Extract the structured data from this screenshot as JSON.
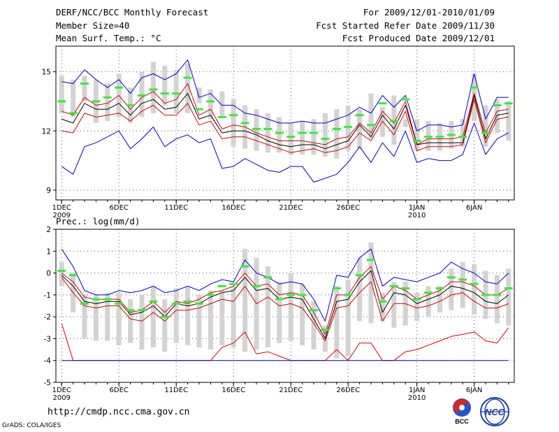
{
  "header": {
    "title": "DERF/NCC/BCC Monthly Forecast",
    "member_size": "Member Size=40",
    "variable": "Mean Surf. Temp.: °C",
    "period": "For 2009/12/01-2010/01/09",
    "refer_date": "Fcst Started Refer Date 2009/11/30",
    "produced_date": "Fcst Produced Date 2009/12/01"
  },
  "footer": {
    "url": "http://cmdp.ncc.cma.gov.cn",
    "credit": "GrADS: COLA/IGES",
    "logo_left_text": "BCC",
    "logo_right_text": "NCC"
  },
  "colors": {
    "band": "#d3d3d3",
    "green": "#33ee33",
    "blue": "#0000cc",
    "red": "#dd0000",
    "black": "#000000",
    "grid": "#555555"
  },
  "chart_data": [
    {
      "type": "line",
      "title": "Mean Surf. Temp.: °C",
      "x_labels": [
        {
          "day": 1,
          "text": "1DEC",
          "sub": "2009"
        },
        {
          "day": 6,
          "text": "6DEC",
          "sub": ""
        },
        {
          "day": 11,
          "text": "11DEC",
          "sub": ""
        },
        {
          "day": 16,
          "text": "16DEC",
          "sub": ""
        },
        {
          "day": 21,
          "text": "21DEC",
          "sub": ""
        },
        {
          "day": 26,
          "text": "26DEC",
          "sub": ""
        },
        {
          "day": 32,
          "text": "1JAN",
          "sub": "2010"
        },
        {
          "day": 37,
          "text": "6JAN",
          "sub": ""
        }
      ],
      "xlim": [
        0.5,
        40.5
      ],
      "ylim": [
        8.5,
        16.3
      ],
      "yticks": [
        9,
        12,
        15
      ],
      "series": [
        {
          "name": "member-range",
          "kind": "band",
          "low": [
            12.9,
            12.7,
            13.5,
            12.4,
            12.5,
            12.7,
            12.4,
            12.7,
            12.9,
            13.3,
            12.9,
            12.9,
            13.4,
            12.6,
            12.7,
            11.2,
            11.1,
            11.0,
            10.9,
            10.9,
            10.8,
            10.8,
            10.8,
            10.7,
            10.6,
            11.0,
            11.1,
            11.6,
            11.7,
            11.3,
            12.2,
            11.0,
            11.0,
            11.0,
            11.1,
            11.2,
            12.5,
            11.2,
            11.9,
            11.5
          ],
          "high": [
            14.8,
            14.6,
            14.8,
            14.6,
            14.4,
            14.9,
            14.2,
            15.0,
            15.5,
            15.3,
            15.1,
            15.4,
            14.2,
            14.1,
            14.0,
            13.6,
            13.3,
            13.1,
            12.9,
            12.7,
            12.4,
            12.5,
            12.6,
            12.9,
            13.1,
            13.3,
            13.1,
            13.9,
            13.2,
            13.8,
            12.6,
            12.6,
            12.5,
            12.4,
            12.5,
            12.6,
            14.9,
            13.3,
            13.6,
            13.5
          ]
        },
        {
          "name": "ensemble-mean-marker",
          "kind": "marker",
          "values": [
            13.5,
            12.9,
            14.4,
            13.5,
            13.7,
            14.2,
            13.3,
            13.8,
            14.1,
            13.9,
            13.9,
            14.7,
            13.1,
            13.5,
            12.7,
            12.8,
            12.4,
            12.1,
            12.1,
            11.9,
            11.7,
            11.9,
            11.9,
            11.6,
            12.1,
            12.2,
            12.8,
            12.3,
            13.4,
            12.5,
            13.6,
            11.5,
            11.7,
            11.7,
            11.8,
            11.7,
            14.2,
            11.9,
            13.3,
            13.4
          ]
        },
        {
          "name": "max",
          "kind": "line",
          "color": "blue",
          "values": [
            14.5,
            14.4,
            15.1,
            14.6,
            14.2,
            14.6,
            13.9,
            14.7,
            14.9,
            14.6,
            14.9,
            15.6,
            13.7,
            13.9,
            13.3,
            13.3,
            12.9,
            12.8,
            12.6,
            12.4,
            12.4,
            12.5,
            12.4,
            12.4,
            12.6,
            12.8,
            13.2,
            12.9,
            13.8,
            13.2,
            13.8,
            12.0,
            12.3,
            12.3,
            12.2,
            12.3,
            14.9,
            12.6,
            13.7,
            13.7
          ]
        },
        {
          "name": "upper",
          "kind": "line",
          "color": "red",
          "values": [
            13.0,
            12.8,
            13.7,
            13.3,
            13.4,
            13.8,
            13.1,
            13.7,
            14.0,
            13.4,
            13.6,
            14.4,
            12.8,
            13.1,
            12.1,
            12.3,
            12.2,
            11.9,
            11.7,
            11.5,
            11.5,
            11.5,
            11.4,
            11.3,
            11.6,
            11.7,
            12.4,
            11.9,
            13.0,
            12.4,
            13.5,
            11.3,
            11.6,
            11.6,
            11.6,
            11.7,
            13.9,
            11.9,
            13.0,
            13.1
          ]
        },
        {
          "name": "mean",
          "kind": "line",
          "color": "black",
          "values": [
            12.6,
            12.4,
            13.4,
            13.1,
            13.1,
            13.4,
            12.8,
            13.4,
            13.6,
            13.1,
            13.2,
            13.9,
            12.6,
            12.8,
            11.9,
            12.0,
            12.0,
            11.8,
            11.5,
            11.3,
            11.2,
            11.3,
            11.3,
            11.1,
            11.3,
            11.5,
            12.3,
            11.7,
            12.8,
            12.1,
            13.3,
            11.3,
            11.4,
            11.4,
            11.4,
            11.4,
            13.8,
            11.6,
            12.8,
            12.9
          ]
        },
        {
          "name": "lower",
          "kind": "line",
          "color": "red",
          "values": [
            12.0,
            11.9,
            12.9,
            12.7,
            12.8,
            12.9,
            12.5,
            13.0,
            13.3,
            12.8,
            12.8,
            13.4,
            12.3,
            12.5,
            11.6,
            11.7,
            11.7,
            11.5,
            11.3,
            11.1,
            10.9,
            11.0,
            11.1,
            10.9,
            11.0,
            11.2,
            11.9,
            11.5,
            12.5,
            11.8,
            13.0,
            11.0,
            11.2,
            11.2,
            11.2,
            11.3,
            13.6,
            11.4,
            12.6,
            12.7
          ]
        },
        {
          "name": "min",
          "kind": "line",
          "color": "blue",
          "values": [
            10.2,
            9.8,
            11.2,
            11.4,
            11.7,
            12.0,
            11.1,
            11.6,
            12.2,
            11.2,
            11.6,
            11.8,
            11.4,
            11.6,
            10.1,
            10.2,
            10.6,
            10.3,
            10.0,
            9.9,
            10.2,
            10.2,
            9.4,
            9.6,
            9.8,
            10.4,
            11.2,
            10.4,
            11.4,
            10.7,
            12.0,
            10.4,
            10.6,
            10.5,
            10.5,
            10.8,
            12.4,
            10.8,
            11.6,
            11.9
          ]
        }
      ]
    },
    {
      "type": "line",
      "title": "Prec.: log(mm/d)",
      "x_labels": [
        {
          "day": 1,
          "text": "1DEC",
          "sub": "2009"
        },
        {
          "day": 6,
          "text": "6DEC",
          "sub": ""
        },
        {
          "day": 11,
          "text": "11DEC",
          "sub": ""
        },
        {
          "day": 16,
          "text": "16DEC",
          "sub": ""
        },
        {
          "day": 21,
          "text": "21DEC",
          "sub": ""
        },
        {
          "day": 26,
          "text": "26DEC",
          "sub": ""
        },
        {
          "day": 32,
          "text": "1JAN",
          "sub": "2010"
        },
        {
          "day": 37,
          "text": "6JAN",
          "sub": ""
        }
      ],
      "xlim": [
        0.5,
        40.5
      ],
      "ylim": [
        -5,
        2
      ],
      "yticks": [
        -5,
        -4,
        -3,
        -2,
        -1,
        0,
        1,
        2
      ],
      "series": [
        {
          "name": "member-range",
          "kind": "band",
          "low": [
            -0.6,
            -1.8,
            -3.0,
            -3.1,
            -3.1,
            -3.3,
            -3.2,
            -3.5,
            -3.4,
            -3.6,
            -3.2,
            -3.3,
            -3.4,
            -3.5,
            -3.3,
            -3.4,
            -3.6,
            -3.5,
            -3.4,
            -3.2,
            -3.1,
            -3.3,
            -3.5,
            -3.6,
            -3.9,
            -3.8,
            -2.2,
            -2.3,
            -2.2,
            -2.5,
            -2.4,
            -2.2,
            -2.0,
            -1.8,
            -1.7,
            -1.6,
            -1.9,
            -2.1,
            -2.3,
            -2.4
          ],
          "high": [
            0.5,
            0.0,
            -1.0,
            -1.0,
            -0.9,
            -0.9,
            -1.2,
            -1.0,
            -0.6,
            -1.2,
            -0.7,
            -0.6,
            -1.0,
            -0.8,
            -0.8,
            -0.6,
            1.1,
            0.7,
            0.3,
            -0.4,
            0.0,
            -0.5,
            -1.3,
            -2.4,
            -0.6,
            -0.3,
            0.7,
            1.4,
            -0.9,
            -0.4,
            -0.4,
            -0.9,
            -0.6,
            -0.6,
            0.2,
            0.5,
            0.4,
            0.1,
            -0.1,
            0.2
          ]
        },
        {
          "name": "ensemble-mean-marker",
          "kind": "marker",
          "values": [
            0.1,
            -0.1,
            -1.4,
            -1.2,
            -1.2,
            -1.4,
            -1.7,
            -1.7,
            -1.3,
            -2.0,
            -1.4,
            -1.3,
            -1.4,
            -1.0,
            -0.6,
            -0.5,
            0.3,
            -0.6,
            -0.2,
            -1.2,
            -1.0,
            -1.0,
            -1.7,
            -2.6,
            -0.7,
            -1.0,
            -0.1,
            0.6,
            -1.3,
            -0.6,
            -0.7,
            -1.2,
            -0.9,
            -0.7,
            -0.2,
            -0.3,
            -0.5,
            -1.0,
            -1.0,
            -0.7
          ]
        },
        {
          "name": "max",
          "kind": "line",
          "color": "blue",
          "values": [
            1.1,
            0.3,
            -0.8,
            -1.0,
            -1.0,
            -0.8,
            -0.9,
            -0.8,
            -0.6,
            -0.9,
            -0.8,
            -0.6,
            -0.8,
            -0.5,
            -0.3,
            -0.4,
            0.6,
            0.0,
            -0.2,
            -0.5,
            -0.4,
            -0.5,
            -1.2,
            -2.2,
            -0.1,
            -0.2,
            0.7,
            1.1,
            -0.6,
            -0.2,
            -0.3,
            -0.4,
            -0.2,
            0.0,
            0.5,
            0.2,
            0.0,
            -0.4,
            -0.5,
            0.0
          ]
        },
        {
          "name": "upper",
          "kind": "line",
          "color": "red",
          "values": [
            0.0,
            -0.4,
            -1.1,
            -1.2,
            -1.2,
            -1.2,
            -1.8,
            -1.7,
            -1.3,
            -1.8,
            -1.3,
            -1.4,
            -1.2,
            -0.9,
            -0.8,
            -0.6,
            0.0,
            -0.6,
            -0.5,
            -1.0,
            -0.9,
            -1.0,
            -1.8,
            -2.8,
            -1.0,
            -1.0,
            -0.2,
            0.3,
            -1.2,
            -0.6,
            -0.8,
            -1.2,
            -1.0,
            -0.8,
            -0.4,
            -0.4,
            -0.6,
            -1.0,
            -1.0,
            -0.7
          ]
        },
        {
          "name": "mean",
          "kind": "line",
          "color": "black",
          "values": [
            -0.1,
            -0.6,
            -1.3,
            -1.4,
            -1.3,
            -1.3,
            -1.9,
            -1.8,
            -1.5,
            -2.0,
            -1.4,
            -1.5,
            -1.4,
            -1.1,
            -0.9,
            -0.8,
            -0.2,
            -0.8,
            -0.7,
            -1.2,
            -1.1,
            -1.2,
            -2.1,
            -3.0,
            -1.3,
            -1.2,
            -0.4,
            0.1,
            -1.8,
            -0.9,
            -1.0,
            -1.4,
            -1.2,
            -1.0,
            -0.6,
            -0.7,
            -0.9,
            -1.3,
            -1.4,
            -1.0
          ]
        },
        {
          "name": "lower",
          "kind": "line",
          "color": "red",
          "values": [
            -0.2,
            -0.9,
            -1.5,
            -1.6,
            -1.5,
            -1.5,
            -2.1,
            -2.2,
            -1.8,
            -2.2,
            -1.7,
            -1.7,
            -1.6,
            -1.4,
            -1.2,
            -1.3,
            -0.6,
            -1.4,
            -1.1,
            -1.5,
            -1.4,
            -1.6,
            -2.3,
            -3.1,
            -1.6,
            -1.5,
            -0.9,
            -0.4,
            -2.2,
            -1.4,
            -1.4,
            -1.6,
            -1.5,
            -1.3,
            -1.0,
            -0.9,
            -1.3,
            -1.6,
            -1.6,
            -1.4
          ]
        },
        {
          "name": "min",
          "kind": "line",
          "color": "red",
          "values": [
            -2.3,
            -4.0,
            -4.0,
            -4.0,
            -4.0,
            -4.0,
            -4.0,
            -4.0,
            -4.0,
            -4.0,
            -4.0,
            -4.0,
            -4.0,
            -4.0,
            -3.4,
            -3.2,
            -2.7,
            -3.7,
            -3.6,
            -3.8,
            -4.0,
            -4.0,
            -4.0,
            -4.0,
            -3.5,
            -4.0,
            -3.2,
            -3.2,
            -4.0,
            -4.0,
            -3.6,
            -3.5,
            -3.3,
            -3.1,
            -2.9,
            -2.8,
            -2.7,
            -3.1,
            -3.2,
            -2.5
          ]
        },
        {
          "name": "floor",
          "kind": "line",
          "color": "blue",
          "values": [
            -4.0,
            -4.0,
            -4.0,
            -4.0,
            -4.0,
            -4.0,
            -4.0,
            -4.0,
            -4.0,
            -4.0,
            -4.0,
            -4.0,
            -4.0,
            -4.0,
            -4.0,
            -4.0,
            -4.0,
            -4.0,
            -4.0,
            -4.0,
            -4.0,
            -4.0,
            -4.0,
            -4.0,
            -4.0,
            -4.0,
            -4.0,
            -4.0,
            -4.0,
            -4.0,
            -4.0,
            -4.0,
            -4.0,
            -4.0,
            -4.0,
            -4.0,
            -4.0,
            -4.0,
            -4.0,
            -4.0
          ]
        }
      ]
    }
  ]
}
